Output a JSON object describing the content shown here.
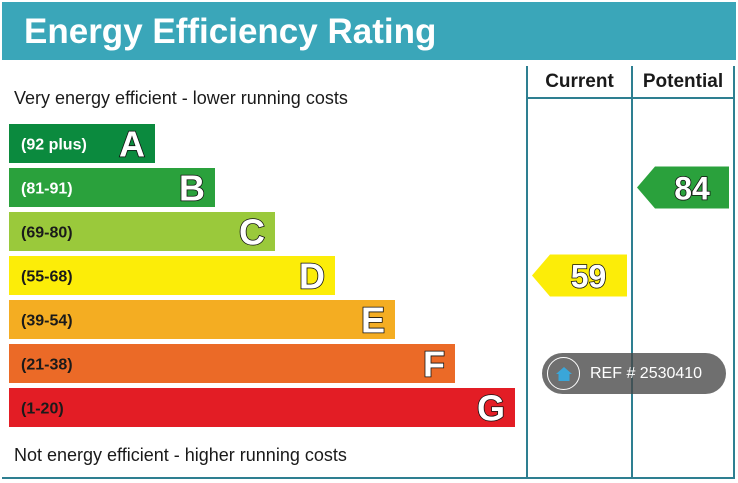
{
  "title": "Energy Efficiency Rating",
  "columns": {
    "current": "Current",
    "potential": "Potential"
  },
  "captions": {
    "top": "Very energy efficient - lower running costs",
    "bottom": "Not energy efficient - higher running costs"
  },
  "watermark": {
    "text": "REF # 2530410",
    "icon": "home-icon"
  },
  "chart_data": {
    "type": "bar",
    "title": "Energy Efficiency Rating",
    "bands": [
      {
        "letter": "A",
        "range": "(92 plus)",
        "min": 92,
        "max": 100,
        "color": "#0b8a3e",
        "label_color": "#ffffff"
      },
      {
        "letter": "B",
        "range": "(81-91)",
        "min": 81,
        "max": 91,
        "color": "#2aa13c",
        "label_color": "#ffffff"
      },
      {
        "letter": "C",
        "range": "(69-80)",
        "min": 69,
        "max": 80,
        "color": "#9ac93b",
        "label_color": "#1a1a1a"
      },
      {
        "letter": "D",
        "range": "(55-68)",
        "min": 55,
        "max": 68,
        "color": "#fced08",
        "label_color": "#1a1a1a"
      },
      {
        "letter": "E",
        "range": "(39-54)",
        "min": 39,
        "max": 54,
        "color": "#f4ad22",
        "label_color": "#1a1a1a"
      },
      {
        "letter": "F",
        "range": "(21-38)",
        "min": 21,
        "max": 38,
        "color": "#eb6a27",
        "label_color": "#1a1a1a"
      },
      {
        "letter": "G",
        "range": "(1-20)",
        "min": 1,
        "max": 20,
        "color": "#e31d25",
        "label_color": "#1a1a1a"
      }
    ],
    "current": {
      "value": 59,
      "band": "D",
      "color": "#fced08"
    },
    "potential": {
      "value": 84,
      "band": "B",
      "color": "#2aa13c"
    }
  }
}
